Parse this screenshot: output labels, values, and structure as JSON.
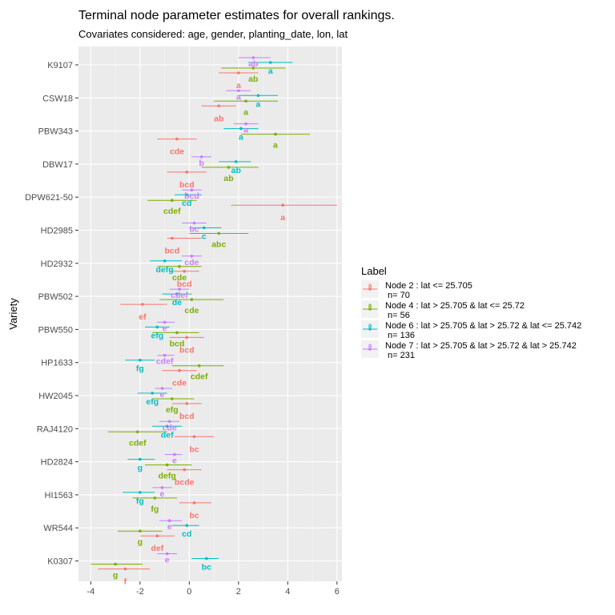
{
  "chart_data": {
    "type": "scatter",
    "subtype": "point-range (dodged)",
    "title": "Terminal node parameter estimates for overall rankings.",
    "subtitle": "Covariates considered: age, gender, planting_date, lon, lat",
    "xlabel": "",
    "ylabel": "Variety",
    "xlim": [
      -4.5,
      6.2
    ],
    "x_ticks": [
      -4,
      -2,
      0,
      2,
      4,
      6
    ],
    "grid": true,
    "legend_position": "right",
    "legend_title": "Label",
    "series": [
      {
        "name": "Node 2 : lat <= 25.705\n n= 70",
        "color": "#F8766D"
      },
      {
        "name": "Node 4 : lat > 25.705 & lat <= 25.72\n n= 56",
        "color": "#7CAE00"
      },
      {
        "name": "Node 6 : lat > 25.705 & lat > 25.72 & lat <= 25.742\n n= 136",
        "color": "#00BFC4"
      },
      {
        "name": "Node 7 : lat > 25.705 & lat > 25.72 & lat > 25.742\n n= 231",
        "color": "#C77CFF"
      }
    ],
    "categories": [
      "K9107",
      "CSW18",
      "PBW343",
      "DBW17",
      "DPW621-50",
      "HD2985",
      "HD2932",
      "PBW502",
      "PBW550",
      "HP1633",
      "HW2045",
      "RAJ4120",
      "HD2824",
      "HI1563",
      "WR544",
      "K0307"
    ],
    "data": [
      {
        "variety": "K9107",
        "points": [
          {
            "s": 0,
            "est": 2.0,
            "lo": 1.2,
            "hi": 2.8,
            "label": "a"
          },
          {
            "s": 1,
            "est": 2.6,
            "lo": 1.3,
            "hi": 3.9,
            "label": "ab"
          },
          {
            "s": 2,
            "est": 3.3,
            "lo": 2.4,
            "hi": 4.2,
            "label": "a"
          },
          {
            "s": 3,
            "est": 2.6,
            "lo": 2.0,
            "hi": 3.3,
            "label": "ab"
          }
        ]
      },
      {
        "variety": "CSW18",
        "points": [
          {
            "s": 0,
            "est": 1.2,
            "lo": 0.5,
            "hi": 1.9,
            "label": "ab"
          },
          {
            "s": 1,
            "est": 2.3,
            "lo": 1.0,
            "hi": 3.6,
            "label": "a"
          },
          {
            "s": 2,
            "est": 2.8,
            "lo": 2.0,
            "hi": 3.6,
            "label": "a"
          },
          {
            "s": 3,
            "est": 2.0,
            "lo": 1.5,
            "hi": 2.5,
            "label": "a"
          }
        ]
      },
      {
        "variety": "PBW343",
        "points": [
          {
            "s": 0,
            "est": -0.5,
            "lo": -1.3,
            "hi": 0.3,
            "label": "cde"
          },
          {
            "s": 1,
            "est": 3.5,
            "lo": 2.1,
            "hi": 4.9,
            "label": "a"
          },
          {
            "s": 2,
            "est": 2.1,
            "lo": 1.4,
            "hi": 2.8,
            "label": "a"
          },
          {
            "s": 3,
            "est": 2.3,
            "lo": 1.8,
            "hi": 2.8,
            "label": "a"
          }
        ]
      },
      {
        "variety": "DBW17",
        "points": [
          {
            "s": 0,
            "est": -0.1,
            "lo": -0.9,
            "hi": 0.7,
            "label": "bcd"
          },
          {
            "s": 1,
            "est": 1.6,
            "lo": 0.5,
            "hi": 2.8,
            "label": "ab"
          },
          {
            "s": 2,
            "est": 1.9,
            "lo": 1.2,
            "hi": 2.5,
            "label": "ab"
          },
          {
            "s": 3,
            "est": 0.5,
            "lo": 0.1,
            "hi": 0.9,
            "label": "b"
          }
        ]
      },
      {
        "variety": "DPW621-50",
        "points": [
          {
            "s": 0,
            "est": 3.8,
            "lo": 1.7,
            "hi": 6.0,
            "label": "a"
          },
          {
            "s": 1,
            "est": -0.7,
            "lo": -1.7,
            "hi": 0.3,
            "label": "cdef"
          },
          {
            "s": 2,
            "est": -0.1,
            "lo": -0.6,
            "hi": 0.5,
            "label": "cd"
          },
          {
            "s": 3,
            "est": 0.1,
            "lo": -0.3,
            "hi": 0.5,
            "label": "bcd"
          }
        ]
      },
      {
        "variety": "HD2985",
        "points": [
          {
            "s": 0,
            "est": -0.7,
            "lo": -0.9,
            "hi": 0.5,
            "label": "bcd"
          },
          {
            "s": 1,
            "est": 1.2,
            "lo": 0.0,
            "hi": 2.4,
            "label": "abc"
          },
          {
            "s": 2,
            "est": 0.6,
            "lo": 0.0,
            "hi": 1.3,
            "label": "c"
          },
          {
            "s": 3,
            "est": 0.2,
            "lo": -0.3,
            "hi": 0.7,
            "label": "bc"
          }
        ]
      },
      {
        "variety": "HD2932",
        "points": [
          {
            "s": 0,
            "est": -0.2,
            "lo": -0.8,
            "hi": 0.4,
            "label": "bcd"
          },
          {
            "s": 1,
            "est": -0.4,
            "lo": -1.3,
            "hi": 0.5,
            "label": "cde"
          },
          {
            "s": 2,
            "est": -1.0,
            "lo": -1.6,
            "hi": -0.3,
            "label": "defg"
          },
          {
            "s": 3,
            "est": 0.1,
            "lo": -0.3,
            "hi": 0.5,
            "label": "cde"
          }
        ]
      },
      {
        "variety": "PBW502",
        "points": [
          {
            "s": 0,
            "est": -1.9,
            "lo": -2.8,
            "hi": -0.9,
            "label": "ef"
          },
          {
            "s": 1,
            "est": 0.1,
            "lo": -1.2,
            "hi": 1.4,
            "label": "cde"
          },
          {
            "s": 2,
            "est": -0.5,
            "lo": -1.1,
            "hi": 0.1,
            "label": "de"
          },
          {
            "s": 3,
            "est": -0.4,
            "lo": -0.8,
            "hi": 0.0,
            "label": "cdef"
          }
        ]
      },
      {
        "variety": "PBW550",
        "points": [
          {
            "s": 0,
            "est": -0.1,
            "lo": -0.8,
            "hi": 0.6,
            "label": "bcd"
          },
          {
            "s": 1,
            "est": -0.5,
            "lo": -1.5,
            "hi": 0.4,
            "label": "bcd"
          },
          {
            "s": 2,
            "est": -1.3,
            "lo": -1.8,
            "hi": -0.8,
            "label": "efg"
          },
          {
            "s": 3,
            "est": -1.0,
            "lo": -1.3,
            "hi": -0.6,
            "label": "e"
          }
        ]
      },
      {
        "variety": "HP1633",
        "points": [
          {
            "s": 0,
            "est": -0.4,
            "lo": -1.1,
            "hi": 0.3,
            "label": "cde"
          },
          {
            "s": 1,
            "est": 0.4,
            "lo": -0.7,
            "hi": 1.4,
            "label": "cdef"
          },
          {
            "s": 2,
            "est": -2.0,
            "lo": -2.6,
            "hi": -1.4,
            "label": "fg"
          },
          {
            "s": 3,
            "est": -1.0,
            "lo": -1.3,
            "hi": -0.6,
            "label": "cdef"
          }
        ]
      },
      {
        "variety": "HW2045",
        "points": [
          {
            "s": 0,
            "est": -0.1,
            "lo": -0.7,
            "hi": 0.5,
            "label": "bcd"
          },
          {
            "s": 1,
            "est": -0.7,
            "lo": -1.5,
            "hi": 0.2,
            "label": "efg"
          },
          {
            "s": 2,
            "est": -1.5,
            "lo": -2.1,
            "hi": -0.9,
            "label": "efg"
          },
          {
            "s": 3,
            "est": -1.1,
            "lo": -1.4,
            "hi": -0.7,
            "label": "e"
          }
        ]
      },
      {
        "variety": "RAJ4120",
        "points": [
          {
            "s": 0,
            "est": 0.2,
            "lo": -0.6,
            "hi": 1.0,
            "label": "bc"
          },
          {
            "s": 1,
            "est": -2.1,
            "lo": -3.3,
            "hi": -0.9,
            "label": "cdef"
          },
          {
            "s": 2,
            "est": -0.9,
            "lo": -1.5,
            "hi": -0.3,
            "label": "def"
          },
          {
            "s": 3,
            "est": -0.8,
            "lo": -1.2,
            "hi": -0.4,
            "label": "cde"
          }
        ]
      },
      {
        "variety": "HD2824",
        "points": [
          {
            "s": 0,
            "est": -0.2,
            "lo": -0.9,
            "hi": 0.5,
            "label": "bcde"
          },
          {
            "s": 1,
            "est": -0.9,
            "lo": -1.8,
            "hi": 0.1,
            "label": "defg"
          },
          {
            "s": 2,
            "est": -2.0,
            "lo": -2.5,
            "hi": -1.4,
            "label": "g"
          },
          {
            "s": 3,
            "est": -0.6,
            "lo": -1.0,
            "hi": -0.3,
            "label": "e"
          }
        ]
      },
      {
        "variety": "HI1563",
        "points": [
          {
            "s": 0,
            "est": 0.2,
            "lo": -0.4,
            "hi": 0.9,
            "label": "bc"
          },
          {
            "s": 1,
            "est": -1.4,
            "lo": -2.3,
            "hi": -0.5,
            "label": "fg"
          },
          {
            "s": 2,
            "est": -2.0,
            "lo": -2.7,
            "hi": -1.4,
            "label": "fg"
          },
          {
            "s": 3,
            "est": -1.1,
            "lo": -1.5,
            "hi": -0.7,
            "label": "e"
          }
        ]
      },
      {
        "variety": "WR544",
        "points": [
          {
            "s": 0,
            "est": -1.3,
            "lo": -2.0,
            "hi": -0.6,
            "label": "def"
          },
          {
            "s": 1,
            "est": -2.0,
            "lo": -2.9,
            "hi": -1.1,
            "label": "g"
          },
          {
            "s": 2,
            "est": -0.1,
            "lo": -0.7,
            "hi": 0.4,
            "label": "cd"
          },
          {
            "s": 3,
            "est": -0.8,
            "lo": -1.2,
            "hi": -0.3,
            "label": "e"
          }
        ]
      },
      {
        "variety": "K0307",
        "points": [
          {
            "s": 0,
            "est": -2.6,
            "lo": -3.7,
            "hi": -1.6,
            "label": "f"
          },
          {
            "s": 1,
            "est": -3.0,
            "lo": -4.0,
            "hi": -1.9,
            "label": "g"
          },
          {
            "s": 2,
            "est": 0.7,
            "lo": 0.1,
            "hi": 1.2,
            "label": "bc"
          },
          {
            "s": 3,
            "est": -0.9,
            "lo": -1.3,
            "hi": -0.5,
            "label": "e"
          }
        ]
      }
    ]
  }
}
